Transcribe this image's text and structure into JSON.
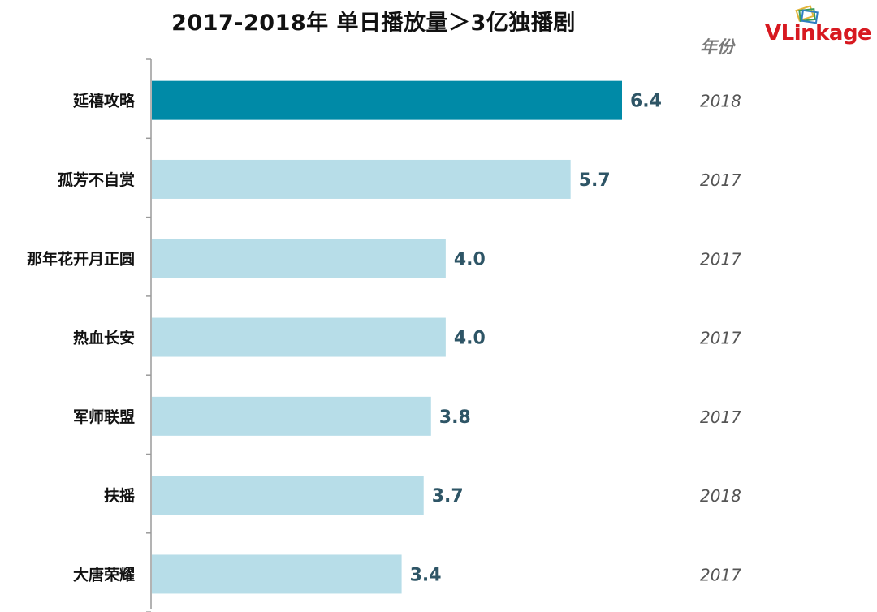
{
  "title": "2017-2018年   单日播放量＞3亿独播剧",
  "logo": {
    "brand": "VLinkage",
    "icon": "stacked-cards-logo-icon"
  },
  "year_column_header": "年份",
  "colors": {
    "highlight": "#008aa7",
    "bar": "#b7dde8",
    "axis": "#9a9a9a",
    "data_label": "#2e5566"
  },
  "chart_data": {
    "type": "bar",
    "orientation": "horizontal",
    "title": "2017-2018年   单日播放量＞3亿独播剧",
    "categories": [
      "延禧攻略",
      "孤芳不自赏",
      "那年花开月正圆",
      "热血长安",
      "军师联盟",
      "扶摇",
      "大唐荣耀"
    ],
    "values": [
      6.4,
      5.7,
      4.0,
      4.0,
      3.8,
      3.7,
      3.4
    ],
    "value_labels": [
      "6.4",
      "5.7",
      "4.0",
      "4.0",
      "3.8",
      "3.7",
      "3.4"
    ],
    "years": [
      "2018",
      "2017",
      "2017",
      "2017",
      "2017",
      "2018",
      "2017"
    ],
    "highlighted_index": 0,
    "xlim": [
      0,
      6.4
    ],
    "grid": false,
    "legend": "none"
  }
}
